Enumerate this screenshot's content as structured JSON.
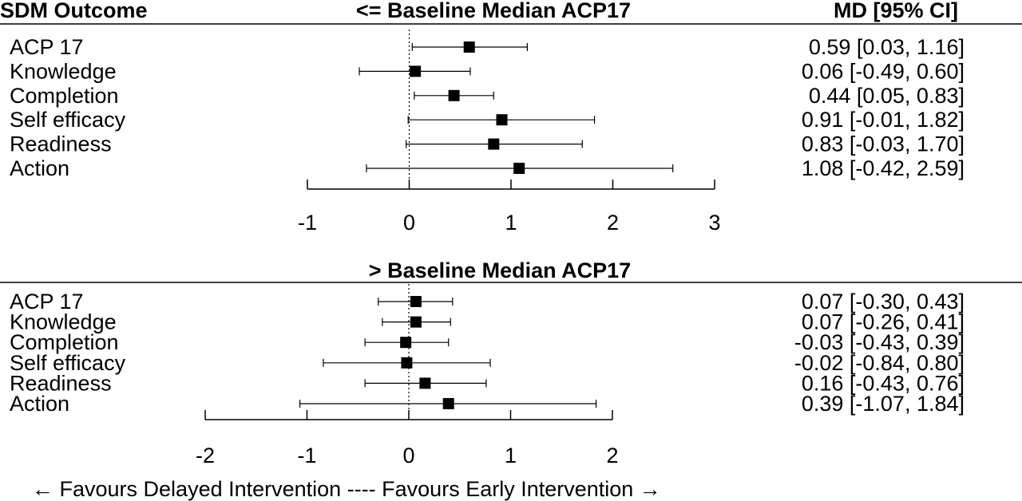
{
  "header": {
    "outcome": "SDM Outcome",
    "md": "MD [95% CI]"
  },
  "footer": "← Favours Delayed Intervention ---- Favours Early Intervention →",
  "chart_data": [
    {
      "type": "forest",
      "title": "<= Baseline Median ACP17",
      "xlim": [
        -1,
        3
      ],
      "ticks": [
        -1,
        0,
        1,
        2,
        3
      ],
      "reference_line": 0,
      "rows": [
        {
          "label": "ACP 17",
          "md": 0.59,
          "lo": 0.03,
          "hi": 1.16,
          "ci_text": "0.59 [0.03, 1.16]"
        },
        {
          "label": "Knowledge",
          "md": 0.06,
          "lo": -0.49,
          "hi": 0.6,
          "ci_text": "0.06 [-0.49, 0.60]"
        },
        {
          "label": "Completion",
          "md": 0.44,
          "lo": 0.05,
          "hi": 0.83,
          "ci_text": "0.44 [0.05, 0.83]"
        },
        {
          "label": "Self efficacy",
          "md": 0.91,
          "lo": -0.01,
          "hi": 1.82,
          "ci_text": "0.91 [-0.01, 1.82]"
        },
        {
          "label": "Readiness",
          "md": 0.83,
          "lo": -0.03,
          "hi": 1.7,
          "ci_text": "0.83 [-0.03, 1.70]"
        },
        {
          "label": "Action",
          "md": 1.08,
          "lo": -0.42,
          "hi": 2.59,
          "ci_text": "1.08 [-0.42, 2.59]"
        }
      ]
    },
    {
      "type": "forest",
      "title": "> Baseline Median ACP17",
      "xlim": [
        -2,
        2
      ],
      "ticks": [
        -2,
        -1,
        0,
        1,
        2
      ],
      "reference_line": 0,
      "rows": [
        {
          "label": "ACP 17",
          "md": 0.07,
          "lo": -0.3,
          "hi": 0.43,
          "ci_text": "0.07 [-0.30, 0.43]"
        },
        {
          "label": "Knowledge",
          "md": 0.07,
          "lo": -0.26,
          "hi": 0.41,
          "ci_text": "0.07 [-0.26, 0.41]"
        },
        {
          "label": "Completion",
          "md": -0.03,
          "lo": -0.43,
          "hi": 0.39,
          "ci_text": "-0.03 [-0.43, 0.39]"
        },
        {
          "label": "Self efficacy",
          "md": -0.02,
          "lo": -0.84,
          "hi": 0.8,
          "ci_text": "-0.02 [-0.84, 0.80]"
        },
        {
          "label": "Readiness",
          "md": 0.16,
          "lo": -0.43,
          "hi": 0.76,
          "ci_text": "0.16 [-0.43, 0.76]"
        },
        {
          "label": "Action",
          "md": 0.39,
          "lo": -1.07,
          "hi": 1.84,
          "ci_text": "0.39 [-1.07, 1.84]"
        }
      ]
    }
  ]
}
